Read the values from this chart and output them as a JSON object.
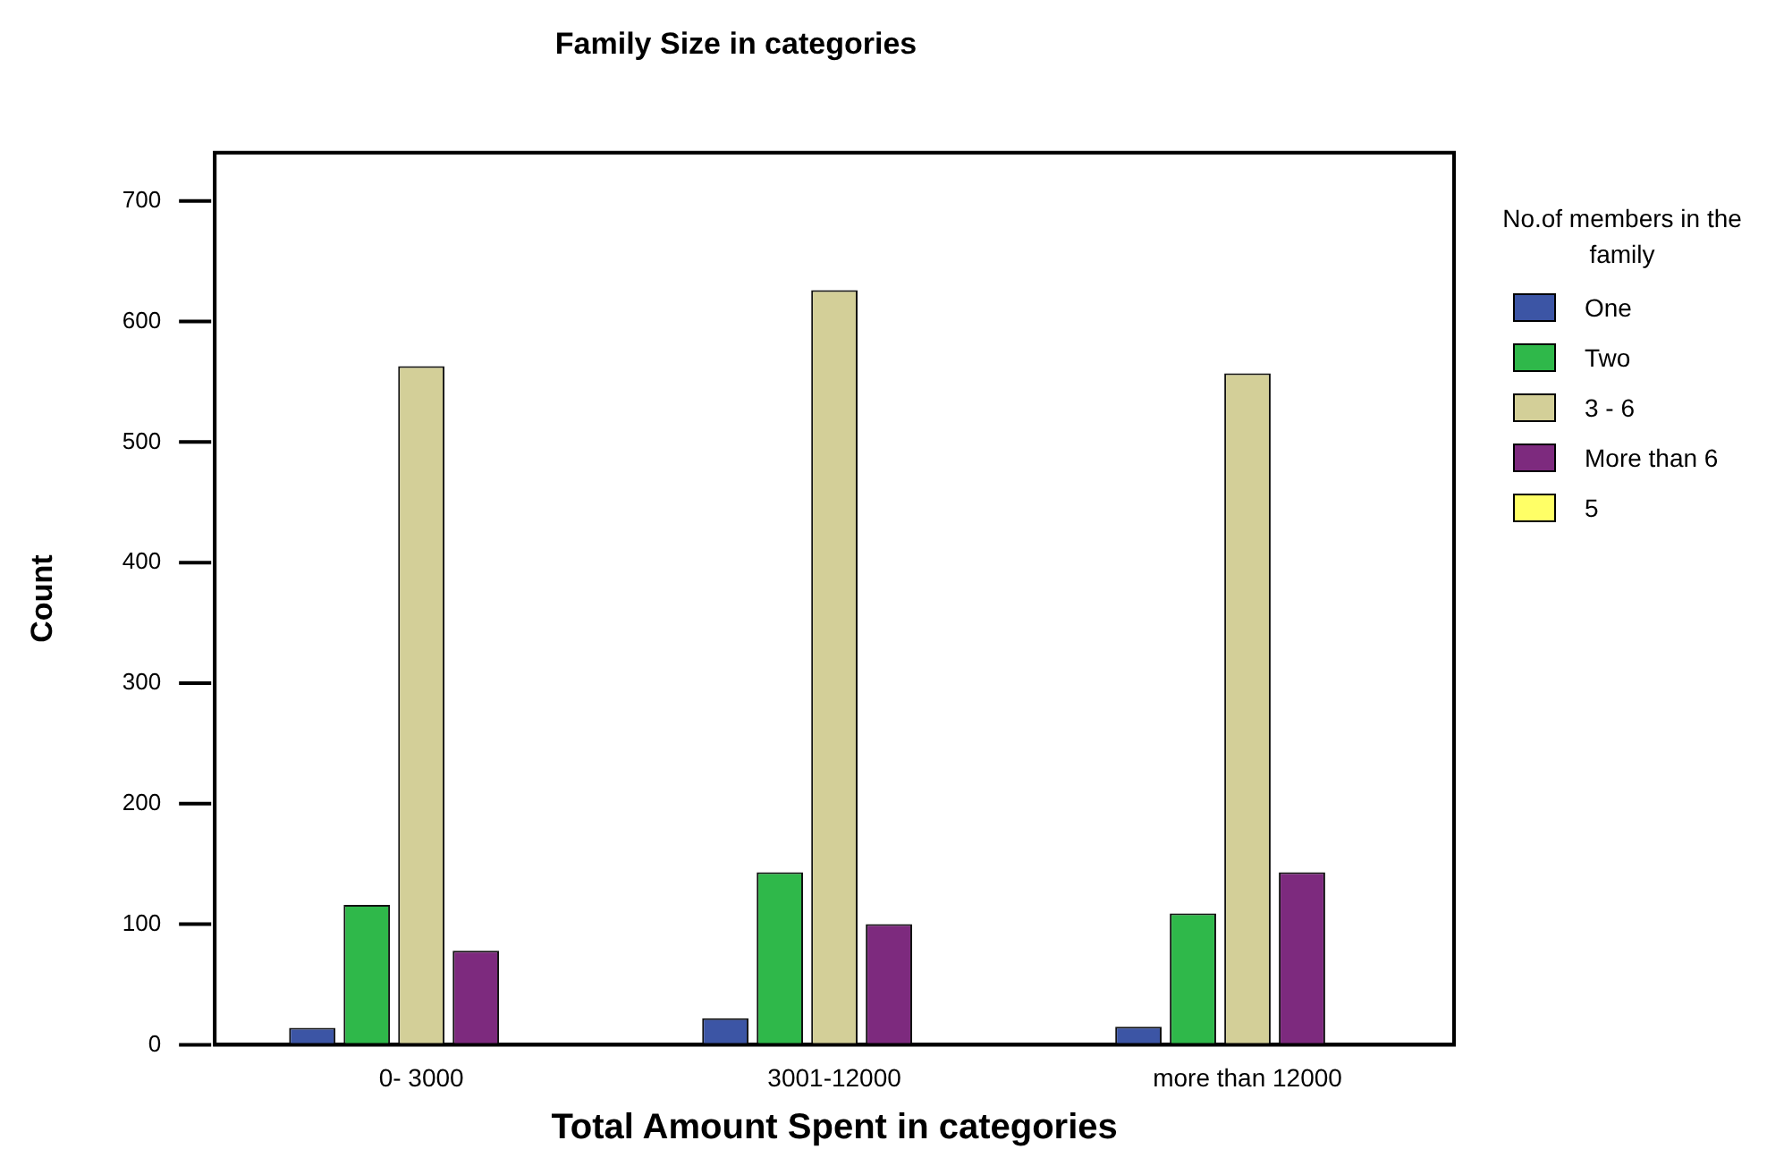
{
  "chart_data": {
    "type": "bar",
    "title": "Family Size in categories",
    "xlabel": "Total Amount Spent in categories",
    "ylabel": "Count",
    "legend_title": "No.of members in the family",
    "categories": [
      "0- 3000",
      "3001-12000",
      "more than 12000"
    ],
    "series": [
      {
        "name": "One",
        "color": "#3c55a5",
        "values": [
          14,
          22,
          15
        ]
      },
      {
        "name": "Two",
        "color": "#2fb84a",
        "values": [
          116,
          143,
          109
        ]
      },
      {
        "name": "3 - 6",
        "color": "#d3cf98",
        "values": [
          563,
          626,
          557
        ]
      },
      {
        "name": "More than 6",
        "color": "#7d2a7e",
        "values": [
          78,
          100,
          143
        ]
      },
      {
        "name": "5",
        "color": "#ffff66",
        "values": [
          0,
          0,
          0
        ]
      }
    ],
    "ylim": [
      0,
      740
    ],
    "yticks": [
      0,
      100,
      200,
      300,
      400,
      500,
      600,
      700
    ],
    "grid": false,
    "legend": "right"
  }
}
